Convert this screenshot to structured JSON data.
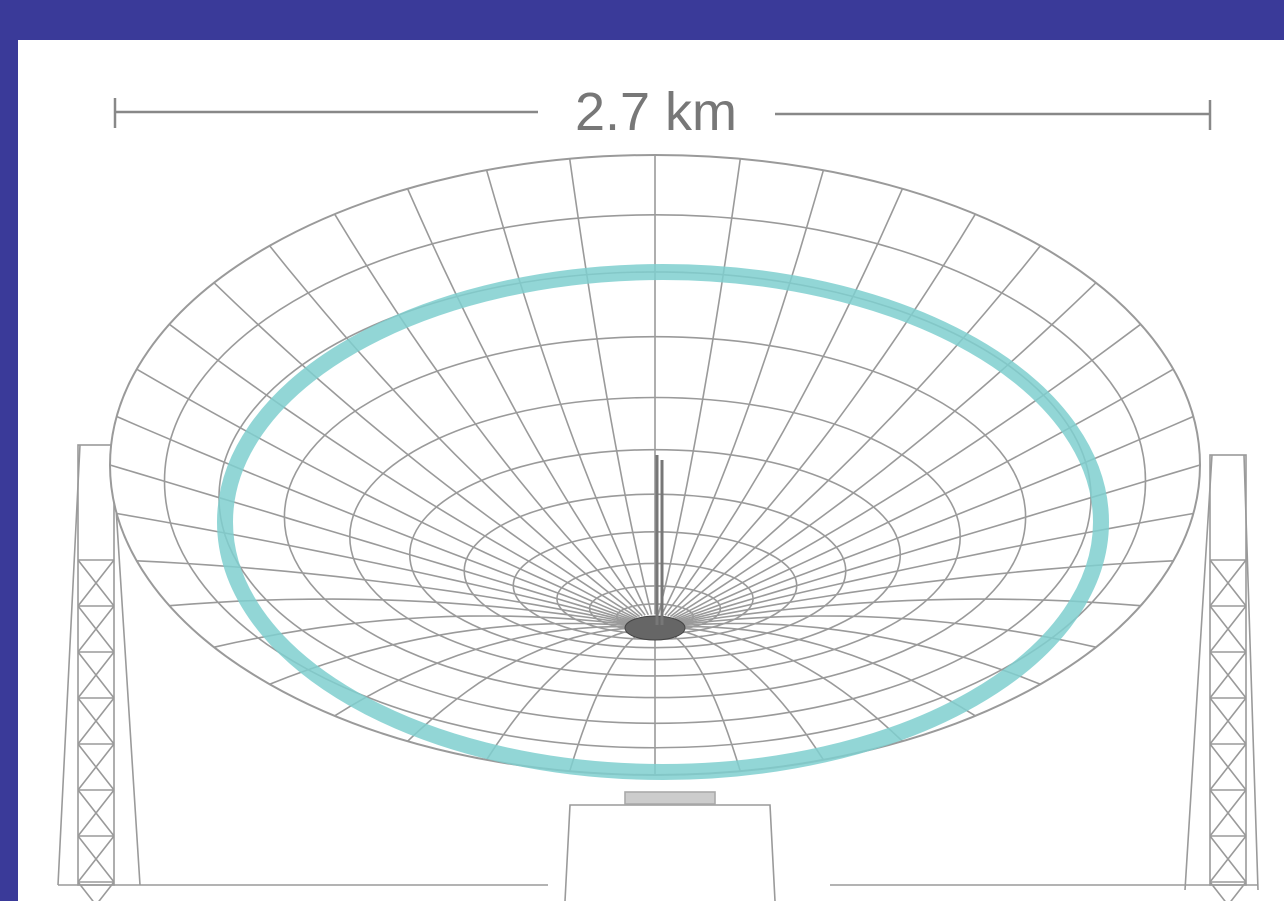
{
  "dimension": {
    "label": "2.7 km"
  }
}
